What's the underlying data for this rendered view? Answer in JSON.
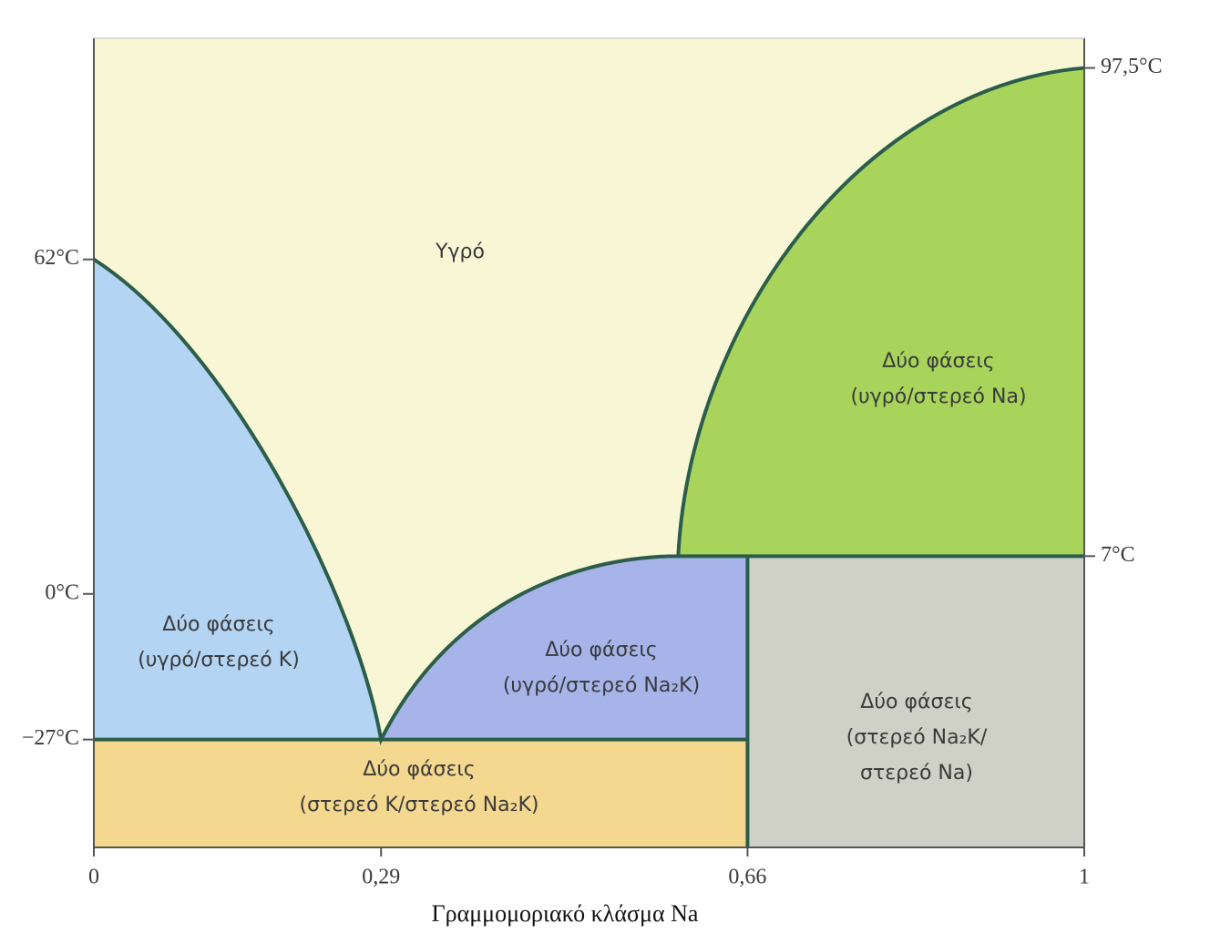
{
  "chart_data": {
    "type": "phase",
    "x_label": "Γραμμομοριακό κλάσμα Na",
    "xlim": [
      0,
      1
    ],
    "xticks": [
      0,
      {
        "value": 0.29,
        "label": "0,29"
      },
      {
        "value": 0.66,
        "label": "0,66"
      },
      1
    ],
    "ylim": [
      -47,
      103
    ],
    "yticks": [
      {
        "value": -27,
        "label": "−27°C"
      },
      {
        "value": 0,
        "label": "0°C"
      },
      {
        "value": 62,
        "label": "62°C"
      }
    ],
    "y2lim": [
      -47,
      103
    ],
    "y2ticks": [
      {
        "value": 7,
        "label": "7°C"
      },
      {
        "value": 97.5,
        "label": "97,5°C"
      }
    ],
    "liquidus": {
      "x": [
        0,
        0.29,
        0.59,
        1
      ],
      "y": [
        62,
        -27,
        7,
        97.5
      ]
    },
    "compound_x": 0.66,
    "line_color": "#2b5e4a",
    "regions": [
      {
        "lines": [
          "Υγρό"
        ],
        "color": "#f8f6d4"
      },
      {
        "lines": [
          "Δύο φάσεις",
          "(υγρό/στερεό K)"
        ],
        "color": "#b4d4f3"
      },
      {
        "lines": [
          "Δύο φάσεις",
          "(υγρό/στερεό Na₂K)"
        ],
        "color": "#a7b4ea"
      },
      {
        "lines": [
          "Δύο φάσεις",
          "(υγρό/στερεό Na)"
        ],
        "color": "#a9d45c"
      },
      {
        "lines": [
          "Δύο φάσεις",
          "(στερεό K/στερεό Na₂K)"
        ],
        "color": "#f4d88f"
      },
      {
        "lines": [
          "Δύο φάσεις",
          "(στερεό Na₂K/",
          "στερεό Na)"
        ],
        "color": "#cfd0c6"
      }
    ]
  }
}
